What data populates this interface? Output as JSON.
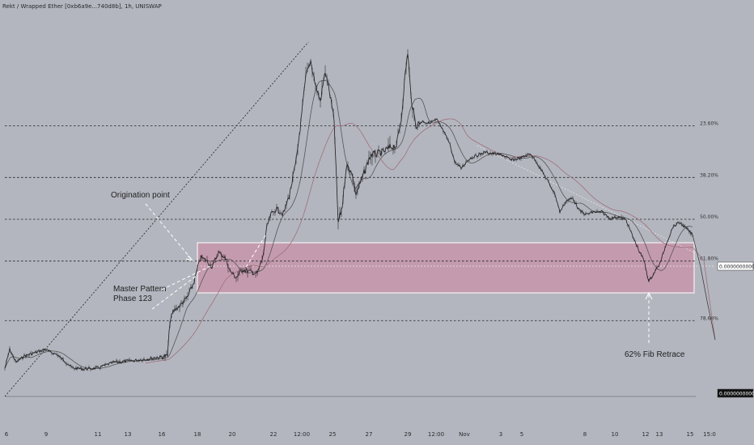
{
  "title": "Rekt / Wrapped Ether [0xb6a9e...740d8b], 1h, UNISWAP",
  "chart_data": {
    "type": "line",
    "series_type": "candlestick-price-with-moving-averages",
    "x_tick_labels": [
      "6",
      "9",
      "11",
      "13",
      "16",
      "18",
      "20",
      "22",
      "12:00",
      "25",
      "27",
      "29",
      "12:00",
      "Nov",
      "3",
      "5",
      "8",
      "10",
      "12",
      "13",
      "15",
      "15:0"
    ],
    "fib_levels": [
      {
        "label": "23.60%",
        "ratio": 0.236
      },
      {
        "label": "38.20%",
        "ratio": 0.382
      },
      {
        "label": "50.00%",
        "ratio": 0.5
      },
      {
        "label": "61.80%",
        "ratio": 0.618
      },
      {
        "label": "78.60%",
        "ratio": 0.786
      }
    ],
    "price_axis_labels": [
      "0.0000000000",
      "0.0000000000"
    ],
    "annotations": [
      {
        "id": "origination",
        "text": "Origination point"
      },
      {
        "id": "master",
        "lines": [
          "Master Pattern",
          "Phase 123"
        ]
      },
      {
        "id": "retrace",
        "text": "62% Fib Retrace"
      }
    ],
    "zone": {
      "label": "pink value zone",
      "color": "#c493a8"
    },
    "colors": {
      "background": "#b3b6bf",
      "price": "#1a1a1a",
      "ma_fast": "#555555",
      "ma_slow": "#a06f7c",
      "zone_fill": "#c796aa",
      "zone_border": "#e8e4e6",
      "fib_line": "#222222"
    }
  }
}
